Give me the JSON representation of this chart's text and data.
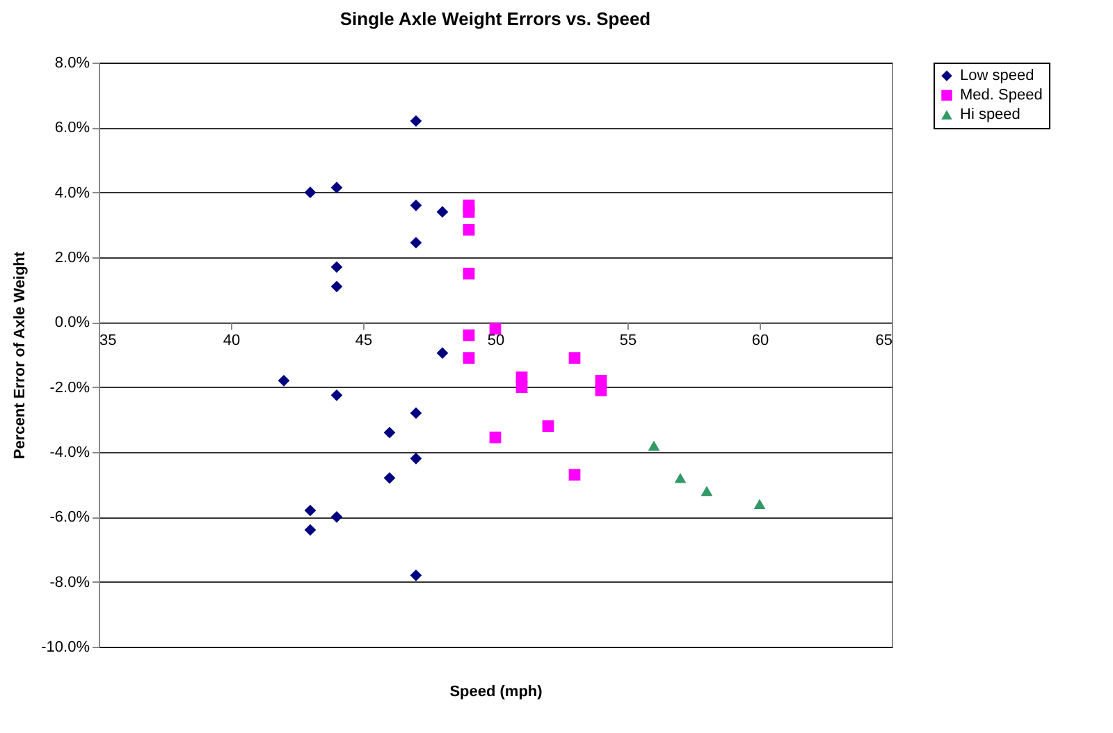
{
  "chart_data": {
    "type": "scatter",
    "title": "Single Axle Weight Errors vs. Speed",
    "xlabel": "Speed (mph)",
    "ylabel": "Percent Error of Axle Weight",
    "xlim": [
      35,
      65
    ],
    "xticks": [
      35,
      40,
      45,
      50,
      55,
      60,
      65
    ],
    "ylim": [
      -10,
      8
    ],
    "yticks": [
      {
        "value": -10,
        "label": "-10.0%"
      },
      {
        "value": -8,
        "label": "-8.0%"
      },
      {
        "value": -6,
        "label": "-6.0%"
      },
      {
        "value": -4,
        "label": "-4.0%"
      },
      {
        "value": -2,
        "label": "-2.0%"
      },
      {
        "value": 0,
        "label": "0.0%"
      },
      {
        "value": 2,
        "label": "2.0%"
      },
      {
        "value": 4,
        "label": "4.0%"
      },
      {
        "value": 6,
        "label": "6.0%"
      },
      {
        "value": 8,
        "label": "8.0%"
      }
    ],
    "grid": "y",
    "legend": "right",
    "series": [
      {
        "name": "Low speed",
        "color": "#000080",
        "marker": "diamond",
        "x": [
          47,
          43,
          44,
          47,
          48,
          47,
          44,
          44,
          48,
          42,
          44,
          47,
          46,
          47,
          46,
          43,
          44,
          43,
          47
        ],
        "values": [
          6.2,
          4.0,
          4.15,
          3.6,
          3.4,
          2.45,
          1.7,
          1.1,
          -0.95,
          -1.8,
          -2.25,
          -2.8,
          -3.4,
          -4.2,
          -4.8,
          -5.8,
          -6.0,
          -6.4,
          -7.8
        ]
      },
      {
        "name": "Med. Speed",
        "color": "#ff00ff",
        "marker": "square",
        "x": [
          49,
          49,
          49,
          49,
          50,
          49,
          49,
          53,
          51,
          51,
          54,
          54,
          52,
          50,
          53
        ],
        "values": [
          3.6,
          3.4,
          2.85,
          1.5,
          -0.2,
          -0.4,
          -1.1,
          -1.1,
          -1.7,
          -2.0,
          -1.8,
          -2.1,
          -3.2,
          -3.55,
          -4.7
        ]
      },
      {
        "name": "Hi speed",
        "color": "#339966",
        "marker": "triangle",
        "x": [
          56,
          57,
          58,
          60
        ],
        "values": [
          -3.8,
          -4.8,
          -5.2,
          -5.6
        ]
      }
    ]
  }
}
